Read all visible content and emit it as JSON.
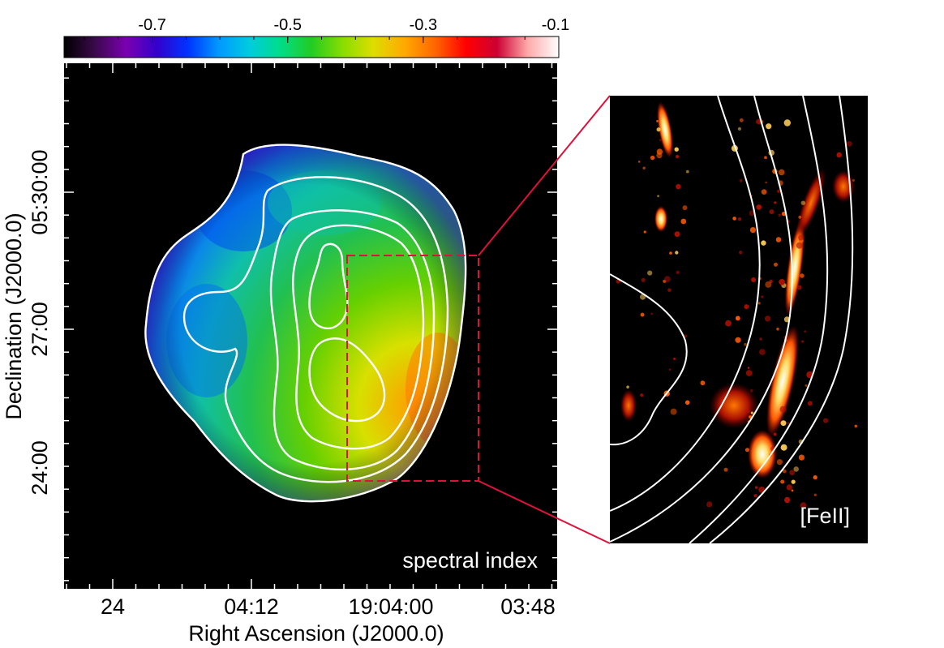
{
  "colorbar": {
    "ticks": [
      "-0.7",
      "-0.5",
      "-0.3",
      "-0.1"
    ],
    "tick_values": [
      -0.7,
      -0.5,
      -0.3,
      -0.1
    ],
    "range": [
      -0.83,
      -0.1
    ],
    "stops": [
      "#000000",
      "#3a0a4a",
      "#7a00b0",
      "#3300cc",
      "#0033ff",
      "#0099ff",
      "#00ccdd",
      "#00dd88",
      "#22cc22",
      "#88dd00",
      "#dddd00",
      "#ffaa00",
      "#ff6600",
      "#ff0000",
      "#cc0033",
      "#ffaaaa",
      "#ffffff"
    ]
  },
  "main_panel": {
    "label": "spectral index",
    "xlabel": "Right Ascension (J2000.0)",
    "ylabel": "Declination (J2000.0)",
    "xticks": [
      "24",
      "04:12",
      "19:04:00",
      "03:48"
    ],
    "yticks": [
      "05:30:00",
      "27:00",
      "24:00"
    ]
  },
  "inset_panel": {
    "label": "[FeII]"
  },
  "colors": {
    "background": "#000000",
    "contour": "#ffffff",
    "zoom_box": "#e0103a"
  }
}
